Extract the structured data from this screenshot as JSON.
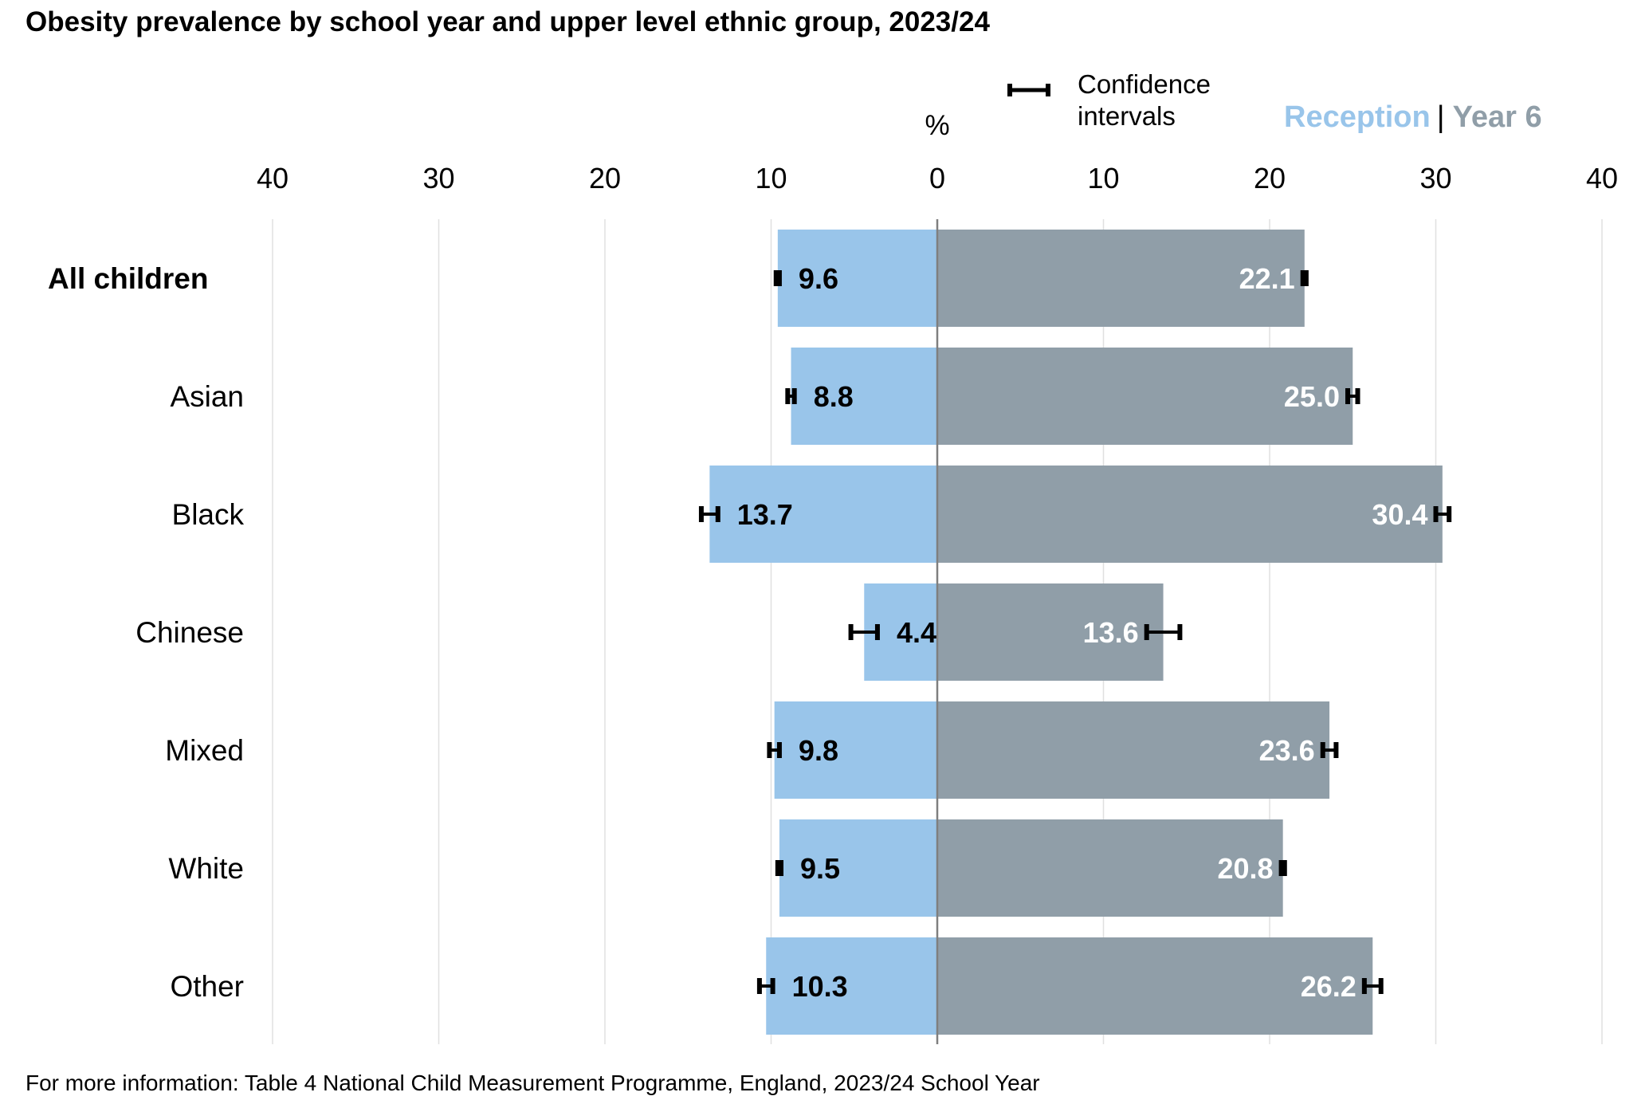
{
  "title": "Obesity prevalence by school year and upper level ethnic group, 2023/24",
  "footer": "For more information: Table 4 National Child Measurement Programme, England, 2023/24 School Year",
  "legend": {
    "ci_label": "Confidence intervals",
    "reception_label": "Reception",
    "separator": "|",
    "year6_label": "Year 6"
  },
  "unit": "%",
  "colors": {
    "reception": "#99c5ea",
    "year6": "#909ea8",
    "axis": "#7f7f7f",
    "grid": "#e0e0e0"
  },
  "chart_data": {
    "type": "bar",
    "orientation": "horizontal-diverging",
    "title": "Obesity prevalence by school year and upper level ethnic group, 2023/24",
    "categories": [
      "All children",
      "Asian",
      "Black",
      "Chinese",
      "Mixed",
      "White",
      "Other"
    ],
    "bold_categories": [
      "All children"
    ],
    "series": [
      {
        "name": "Reception",
        "side": "left",
        "values": [
          9.6,
          8.8,
          13.7,
          4.4,
          9.8,
          9.5,
          10.3
        ],
        "ci_low": [
          9.5,
          8.6,
          13.2,
          3.6,
          9.5,
          9.4,
          9.9
        ],
        "ci_high": [
          9.7,
          9.0,
          14.2,
          5.2,
          10.1,
          9.6,
          10.7
        ]
      },
      {
        "name": "Year 6",
        "side": "right",
        "values": [
          22.1,
          25.0,
          30.4,
          13.6,
          23.6,
          20.8,
          26.2
        ],
        "ci_low": [
          22.0,
          24.7,
          30.0,
          12.6,
          23.2,
          20.7,
          25.7
        ],
        "ci_high": [
          22.2,
          25.3,
          30.8,
          14.6,
          24.0,
          20.9,
          26.7
        ]
      }
    ],
    "axis_ticks": [
      40,
      30,
      20,
      10,
      0,
      10,
      20,
      30,
      40
    ],
    "xlim": [
      -40,
      40
    ],
    "xlabel": "%",
    "grid": true
  }
}
